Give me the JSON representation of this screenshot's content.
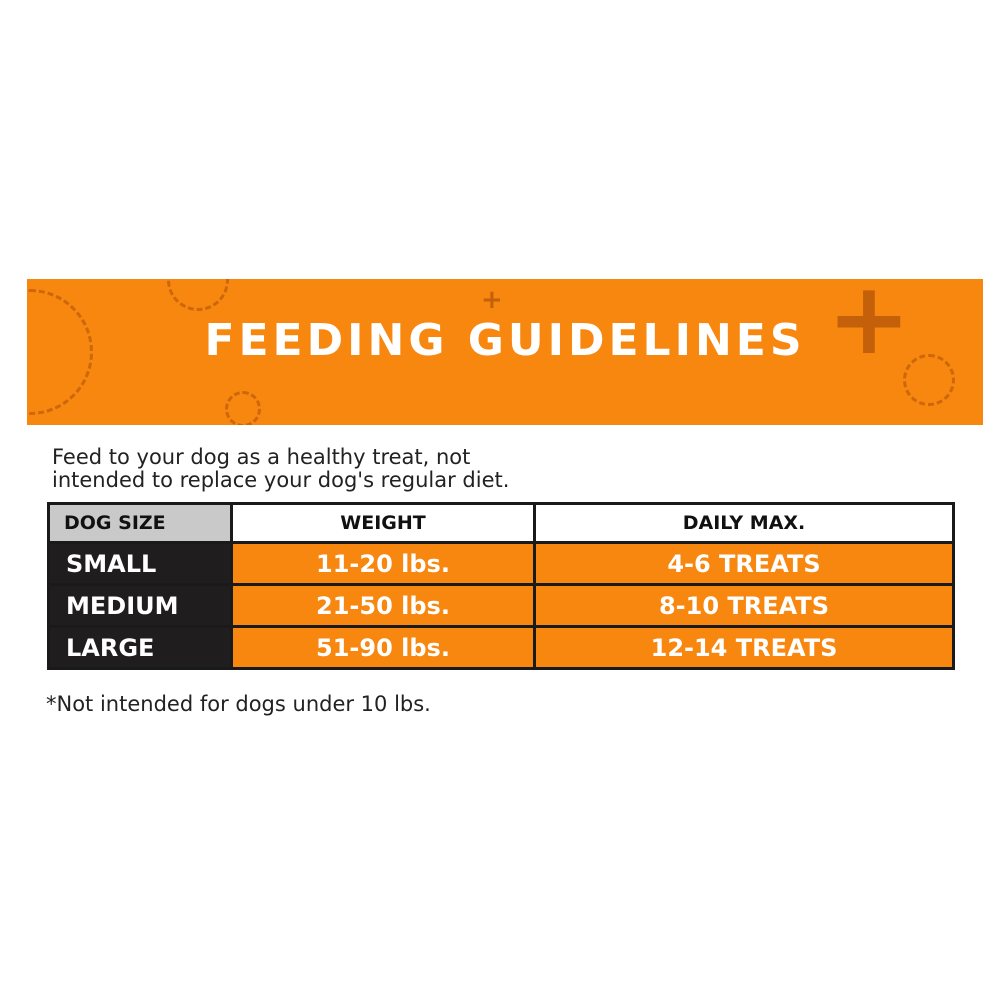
{
  "banner": {
    "title": "FEEDING GUIDELINES",
    "color": "#f7870f"
  },
  "intro": {
    "line1": "Feed to your dog as a healthy treat, not",
    "line2": "intended to replace your dog's regular diet."
  },
  "table": {
    "headers": [
      "DOG SIZE",
      "WEIGHT",
      "DAILY MAX."
    ],
    "rows": [
      {
        "size": "SMALL",
        "weight": "11-20 lbs.",
        "max": "4-6 TREATS"
      },
      {
        "size": "MEDIUM",
        "weight": "21-50 lbs.",
        "max": "8-10 TREATS"
      },
      {
        "size": "LARGE",
        "weight": "51-90 lbs.",
        "max": "12-14 TREATS"
      }
    ]
  },
  "footnote": "*Not intended for dogs under 10 lbs."
}
